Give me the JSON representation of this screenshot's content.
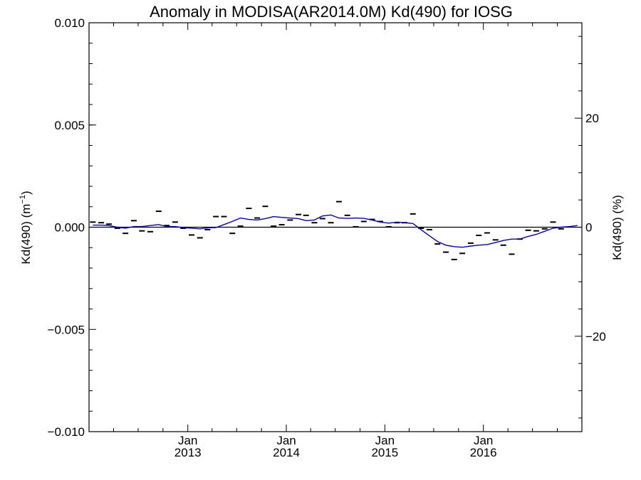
{
  "chart_data": {
    "type": "line",
    "title": "Anomaly in MODISA(AR2014.0M) Kd(490) for IOSG",
    "ylabel_left": {
      "main": "Kd(490) (m",
      "sup": "−1",
      "close": ")"
    },
    "ylabel_right": "Kd(490) (%)",
    "ylim_left": [
      -0.01,
      0.01
    ],
    "ylim_right": [
      -37.5,
      37.5
    ],
    "y_ticks_left": [
      {
        "value": 0.01,
        "label": "0.010"
      },
      {
        "value": 0.005,
        "label": "0.005"
      },
      {
        "value": 0.0,
        "label": "0.000"
      },
      {
        "value": -0.005,
        "label": "−0.005"
      },
      {
        "value": -0.01,
        "label": "−0.010"
      }
    ],
    "y_ticks_right": [
      {
        "value": 20,
        "label": "20"
      },
      {
        "value": 0,
        "label": "0"
      },
      {
        "value": -20,
        "label": "−20"
      }
    ],
    "xlim": [
      "2012-01-01",
      "2016-12-31"
    ],
    "x_ticks": [
      {
        "date": "2013-01-01",
        "month": "Jan",
        "year": "2013"
      },
      {
        "date": "2014-01-01",
        "month": "Jan",
        "year": "2014"
      },
      {
        "date": "2015-01-01",
        "month": "Jan",
        "year": "2015"
      },
      {
        "date": "2016-01-01",
        "month": "Jan",
        "year": "2016"
      }
    ],
    "zero_line": true,
    "series": [
      {
        "style": "markers",
        "marker": "dash",
        "color": "#000000",
        "points": [
          [
            "2012-01",
            0.00025
          ],
          [
            "2012-02",
            0.00022
          ],
          [
            "2012-03",
            0.00015
          ],
          [
            "2012-04",
            -5e-05
          ],
          [
            "2012-05",
            -0.0003
          ],
          [
            "2012-06",
            0.00032
          ],
          [
            "2012-07",
            -0.00018
          ],
          [
            "2012-08",
            -0.00022
          ],
          [
            "2012-09",
            0.00078
          ],
          [
            "2012-10",
            8e-05
          ],
          [
            "2012-11",
            0.00025
          ],
          [
            "2012-12",
            -5e-05
          ],
          [
            "2013-01",
            -0.00038
          ],
          [
            "2013-02",
            -0.00052
          ],
          [
            "2013-03",
            -0.00012
          ],
          [
            "2013-04",
            0.00052
          ],
          [
            "2013-05",
            0.00052
          ],
          [
            "2013-06",
            -0.0003
          ],
          [
            "2013-07",
            5e-05
          ],
          [
            "2013-08",
            0.00092
          ],
          [
            "2013-09",
            0.00045
          ],
          [
            "2013-10",
            0.00102
          ],
          [
            "2013-11",
            5e-05
          ],
          [
            "2013-12",
            0.00012
          ],
          [
            "2014-01",
            0.00035
          ],
          [
            "2014-02",
            0.00062
          ],
          [
            "2014-03",
            0.00058
          ],
          [
            "2014-04",
            0.00022
          ],
          [
            "2014-05",
            0.00042
          ],
          [
            "2014-06",
            0.00022
          ],
          [
            "2014-07",
            0.00125
          ],
          [
            "2014-08",
            0.00058
          ],
          [
            "2014-09",
            2e-05
          ],
          [
            "2014-10",
            0.00028
          ],
          [
            "2014-11",
            0.00038
          ],
          [
            "2014-12",
            0.00028
          ],
          [
            "2015-01",
            2e-05
          ],
          [
            "2015-02",
            0.00022
          ],
          [
            "2015-03",
            0.00022
          ],
          [
            "2015-04",
            0.00065
          ],
          [
            "2015-05",
            -5e-05
          ],
          [
            "2015-06",
            -0.00012
          ],
          [
            "2015-07",
            -0.00082
          ],
          [
            "2015-08",
            -0.00122
          ],
          [
            "2015-09",
            -0.00158
          ],
          [
            "2015-10",
            -0.00128
          ],
          [
            "2015-11",
            -0.00078
          ],
          [
            "2015-12",
            -0.0004
          ],
          [
            "2016-01",
            -0.00028
          ],
          [
            "2016-02",
            -0.00062
          ],
          [
            "2016-03",
            -0.00088
          ],
          [
            "2016-04",
            -0.00132
          ],
          [
            "2016-05",
            -0.00058
          ],
          [
            "2016-06",
            -0.00015
          ],
          [
            "2016-07",
            -0.00018
          ],
          [
            "2016-08",
            -8e-05
          ],
          [
            "2016-09",
            0.00025
          ],
          [
            "2016-10",
            -8e-05
          ]
        ]
      },
      {
        "style": "line",
        "color": "#0000cc",
        "points": [
          [
            "2012-01",
            0.0001
          ],
          [
            "2012-02",
            0.0001
          ],
          [
            "2012-03",
            8e-05
          ],
          [
            "2012-04",
            0.0
          ],
          [
            "2012-05",
            -5e-05
          ],
          [
            "2012-06",
            3e-05
          ],
          [
            "2012-07",
            3e-05
          ],
          [
            "2012-08",
            8e-05
          ],
          [
            "2012-09",
            0.00013
          ],
          [
            "2012-10",
            3e-05
          ],
          [
            "2012-11",
            3e-05
          ],
          [
            "2012-12",
            -2e-05
          ],
          [
            "2013-01",
            -5e-05
          ],
          [
            "2013-02",
            -8e-05
          ],
          [
            "2013-03",
            -3e-05
          ],
          [
            "2013-04",
            -2e-05
          ],
          [
            "2013-05",
            0.00013
          ],
          [
            "2013-06",
            0.00028
          ],
          [
            "2013-07",
            0.00045
          ],
          [
            "2013-08",
            0.00038
          ],
          [
            "2013-09",
            0.00035
          ],
          [
            "2013-10",
            0.00042
          ],
          [
            "2013-11",
            0.00052
          ],
          [
            "2013-12",
            0.00048
          ],
          [
            "2014-01",
            0.00045
          ],
          [
            "2014-02",
            0.00042
          ],
          [
            "2014-03",
            0.00032
          ],
          [
            "2014-04",
            0.00035
          ],
          [
            "2014-05",
            0.00055
          ],
          [
            "2014-06",
            0.0006
          ],
          [
            "2014-07",
            0.00045
          ],
          [
            "2014-08",
            0.00043
          ],
          [
            "2014-09",
            0.00045
          ],
          [
            "2014-10",
            0.00043
          ],
          [
            "2014-11",
            0.00035
          ],
          [
            "2014-12",
            0.00025
          ],
          [
            "2015-01",
            0.0002
          ],
          [
            "2015-02",
            0.00025
          ],
          [
            "2015-03",
            0.00022
          ],
          [
            "2015-04",
            0.00018
          ],
          [
            "2015-05",
            -0.00012
          ],
          [
            "2015-06",
            -0.00042
          ],
          [
            "2015-07",
            -0.0007
          ],
          [
            "2015-08",
            -0.00088
          ],
          [
            "2015-09",
            -0.00095
          ],
          [
            "2015-10",
            -0.00098
          ],
          [
            "2015-11",
            -0.00092
          ],
          [
            "2015-12",
            -0.00088
          ],
          [
            "2016-01",
            -0.00085
          ],
          [
            "2016-02",
            -0.00075
          ],
          [
            "2016-03",
            -0.00065
          ],
          [
            "2016-04",
            -0.00058
          ],
          [
            "2016-05",
            -0.00058
          ],
          [
            "2016-06",
            -0.00045
          ],
          [
            "2016-07",
            -0.00035
          ],
          [
            "2016-08",
            -0.0002
          ],
          [
            "2016-09",
            -5e-05
          ],
          [
            "2016-10",
            0.0
          ],
          [
            "2016-11",
            3e-05
          ],
          [
            "2016-12",
            8e-05
          ]
        ]
      }
    ]
  }
}
